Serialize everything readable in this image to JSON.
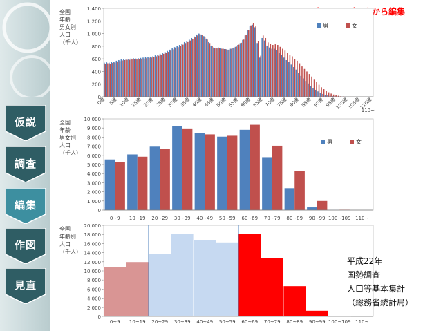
{
  "headline": "全て同じデータから編集",
  "sidebar": {
    "items": [
      {
        "label": "仮説",
        "active": false
      },
      {
        "label": "調査",
        "active": false
      },
      {
        "label": "編集",
        "active": true
      },
      {
        "label": "作図",
        "active": false
      },
      {
        "label": "見直",
        "active": false
      }
    ],
    "colors": {
      "normal": "#2f5d64",
      "active": "#3d8fa0"
    }
  },
  "source_note": [
    "平成22年",
    "国勢調査",
    "人口等基本集計",
    "（総務省統計局）"
  ],
  "chart_data": [
    {
      "type": "bar",
      "ylabel": [
        "全国",
        "年齢",
        "男女別",
        "人口",
        "（千人）"
      ],
      "ylim": [
        0,
        1400
      ],
      "yticks": [
        0,
        200,
        400,
        600,
        800,
        1000,
        1200,
        1400
      ],
      "xticks": [
        "0歳",
        "5歳",
        "10歳",
        "15歳",
        "20歳",
        "25歳",
        "30歳",
        "35歳",
        "40歳",
        "45歳",
        "50歳",
        "55歳",
        "60歳",
        "65歳",
        "70歳",
        "75歳",
        "80歳",
        "85歳",
        "90歳",
        "95歳",
        "100歳",
        "105歳",
        "110歳"
      ],
      "xticks_tail": "110~",
      "legend": {
        "placement": "top-right"
      },
      "series": [
        {
          "name": "男",
          "color": "#4f81bd",
          "values": [
            540,
            545,
            540,
            550,
            555,
            570,
            580,
            590,
            595,
            600,
            600,
            605,
            610,
            605,
            610,
            615,
            620,
            625,
            630,
            635,
            640,
            655,
            665,
            680,
            695,
            710,
            725,
            745,
            765,
            785,
            800,
            820,
            840,
            865,
            880,
            905,
            930,
            955,
            985,
            1000,
            985,
            960,
            920,
            865,
            810,
            780,
            775,
            780,
            765,
            760,
            755,
            745,
            760,
            775,
            790,
            820,
            850,
            900,
            970,
            1050,
            1120,
            1140,
            1100,
            850,
            620,
            930,
            890,
            810,
            780,
            760,
            760,
            740,
            700,
            660,
            620,
            580,
            550,
            510,
            470,
            430,
            380,
            330,
            290,
            250,
            210,
            170,
            140,
            110,
            85,
            60,
            45,
            33,
            24,
            16,
            11,
            8,
            5,
            3,
            2,
            1,
            1,
            0,
            0,
            0,
            0,
            0,
            0,
            0,
            0,
            0,
            0
          ]
        },
        {
          "name": "女",
          "color": "#c0504d",
          "values": [
            525,
            530,
            525,
            535,
            540,
            555,
            565,
            575,
            580,
            585,
            585,
            590,
            595,
            590,
            595,
            600,
            605,
            610,
            615,
            620,
            625,
            640,
            650,
            665,
            680,
            695,
            710,
            730,
            750,
            770,
            785,
            805,
            825,
            850,
            865,
            890,
            915,
            940,
            970,
            990,
            975,
            950,
            905,
            850,
            800,
            770,
            765,
            770,
            760,
            755,
            750,
            745,
            760,
            780,
            795,
            825,
            855,
            905,
            980,
            1060,
            1130,
            1160,
            1120,
            880,
            650,
            970,
            930,
            860,
            840,
            820,
            830,
            820,
            790,
            760,
            730,
            690,
            660,
            640,
            600,
            570,
            530,
            480,
            440,
            400,
            360,
            320,
            270,
            230,
            190,
            150,
            120,
            95,
            70,
            50,
            35,
            24,
            16,
            10,
            6,
            3,
            2,
            1,
            1,
            0,
            0,
            0,
            0,
            0,
            0,
            0,
            0
          ]
        }
      ]
    },
    {
      "type": "bar",
      "ylabel": [
        "全国",
        "年齢",
        "男女別",
        "人口",
        "（千人）"
      ],
      "ylim": [
        0,
        10000
      ],
      "yticks": [
        0,
        1000,
        2000,
        3000,
        4000,
        5000,
        6000,
        7000,
        8000,
        9000,
        10000
      ],
      "categories": [
        "0~9",
        "10~19",
        "20~29",
        "30~39",
        "40~49",
        "50~59",
        "60~69",
        "70~79",
        "80~89",
        "90~99",
        "100~109",
        "110~"
      ],
      "legend": {
        "placement": "right"
      },
      "series": [
        {
          "name": "男",
          "color": "#4f81bd",
          "values": [
            5550,
            6100,
            6950,
            9200,
            8450,
            8050,
            8800,
            5800,
            2400,
            300,
            10,
            0
          ]
        },
        {
          "name": "女",
          "color": "#c0504d",
          "values": [
            5280,
            5850,
            6700,
            8950,
            8300,
            8150,
            9350,
            7050,
            4300,
            1000,
            40,
            0
          ]
        }
      ]
    },
    {
      "type": "bar",
      "ylabel": [
        "全国",
        "年齢別",
        "人口",
        "（千人）"
      ],
      "ylim": [
        0,
        20000
      ],
      "yticks": [
        0,
        2000,
        4000,
        6000,
        8000,
        10000,
        12000,
        14000,
        16000,
        18000,
        20000
      ],
      "categories": [
        "0~9",
        "10~19",
        "20~29",
        "30~39",
        "40~49",
        "50~59",
        "60~69",
        "70~79",
        "80~89",
        "90~99",
        "100~109",
        "110~"
      ],
      "values": [
        10900,
        12000,
        13800,
        18200,
        16800,
        16300,
        18200,
        12800,
        6700,
        1300,
        50,
        0
      ],
      "colors": [
        "#d99594",
        "#d99594",
        "#c6d9f1",
        "#c6d9f1",
        "#c6d9f1",
        "#c6d9f1",
        "#ff0000",
        "#ff0000",
        "#ff0000",
        "#ff0000",
        "#ff0000",
        "#ff0000"
      ],
      "group_dividers": [
        2,
        6
      ]
    }
  ]
}
